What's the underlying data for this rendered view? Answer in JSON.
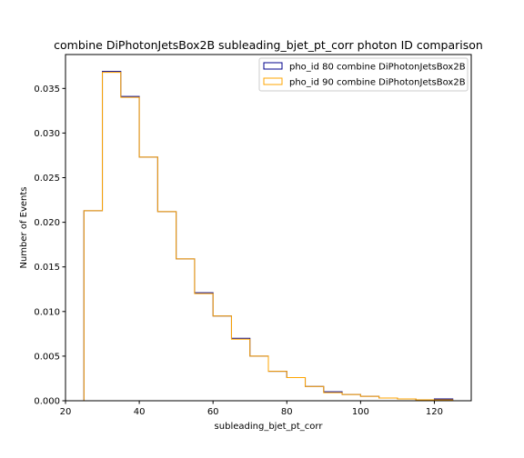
{
  "chart_data": {
    "type": "step-histogram",
    "title": "combine DiPhotonJetsBox2B subleading_bjet_pt_corr photon ID comparison",
    "xlabel": "subleading_bjet_pt_corr",
    "ylabel": "Number of Events",
    "xlim": [
      20,
      130
    ],
    "ylim": [
      0,
      0.0388
    ],
    "x_ticks": [
      20,
      40,
      60,
      80,
      100,
      120
    ],
    "y_ticks": [
      0.0,
      0.005,
      0.01,
      0.015,
      0.02,
      0.025,
      0.03,
      0.035
    ],
    "y_tick_labels": [
      "0.000",
      "0.005",
      "0.010",
      "0.015",
      "0.020",
      "0.025",
      "0.030",
      "0.035"
    ],
    "bin_edges": [
      25,
      30,
      35,
      40,
      45,
      50,
      55,
      60,
      65,
      70,
      75,
      80,
      85,
      90,
      95,
      100,
      105,
      110,
      115,
      120,
      125
    ],
    "legend_position": "top-right",
    "grid": false,
    "series": [
      {
        "name": "pho_id 80 combine DiPhotonJetsBox2B",
        "color": "#00008b",
        "values": [
          0.0213,
          0.0369,
          0.0341,
          0.0273,
          0.0212,
          0.0159,
          0.0121,
          0.0095,
          0.007,
          0.005,
          0.0033,
          0.0026,
          0.0016,
          0.001,
          0.0007,
          0.0005,
          0.0003,
          0.0002,
          0.0001,
          0.0002
        ]
      },
      {
        "name": "pho_id 90 combine DiPhotonJetsBox2B",
        "color": "#ffa500",
        "values": [
          0.0213,
          0.0368,
          0.034,
          0.0273,
          0.0212,
          0.0159,
          0.012,
          0.0095,
          0.0069,
          0.005,
          0.0033,
          0.0026,
          0.0016,
          0.0009,
          0.0007,
          0.0005,
          0.0003,
          0.0002,
          0.0001,
          0.0001
        ]
      }
    ]
  }
}
